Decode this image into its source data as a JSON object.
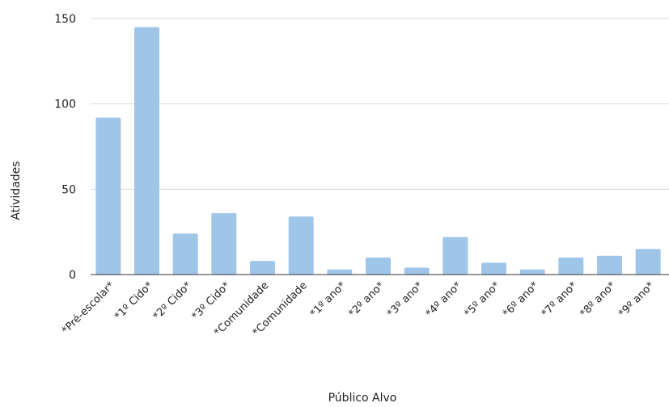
{
  "chart_data": {
    "type": "bar",
    "title": "",
    "xlabel": "Público Alvo",
    "ylabel": "Atividades",
    "ylim": [
      0,
      150
    ],
    "yticks": [
      0,
      50,
      100,
      150
    ],
    "grid": true,
    "bar_color": "#9fc5e8",
    "categories": [
      "*Pré-escolar*",
      "*1º Cido*",
      "*2º Cido*",
      "*3º Cido*",
      "*Comunidade",
      "*Comunidade",
      "*1º ano*",
      "*2º ano*",
      "*3º ano*",
      "*4º ano*",
      "*5º ano*",
      "*6º ano*",
      "*7º ano*",
      "*8º ano*",
      "*9º ano*"
    ],
    "values": [
      92,
      145,
      24,
      36,
      8,
      34,
      3,
      10,
      4,
      22,
      7,
      3,
      10,
      11,
      15
    ]
  }
}
